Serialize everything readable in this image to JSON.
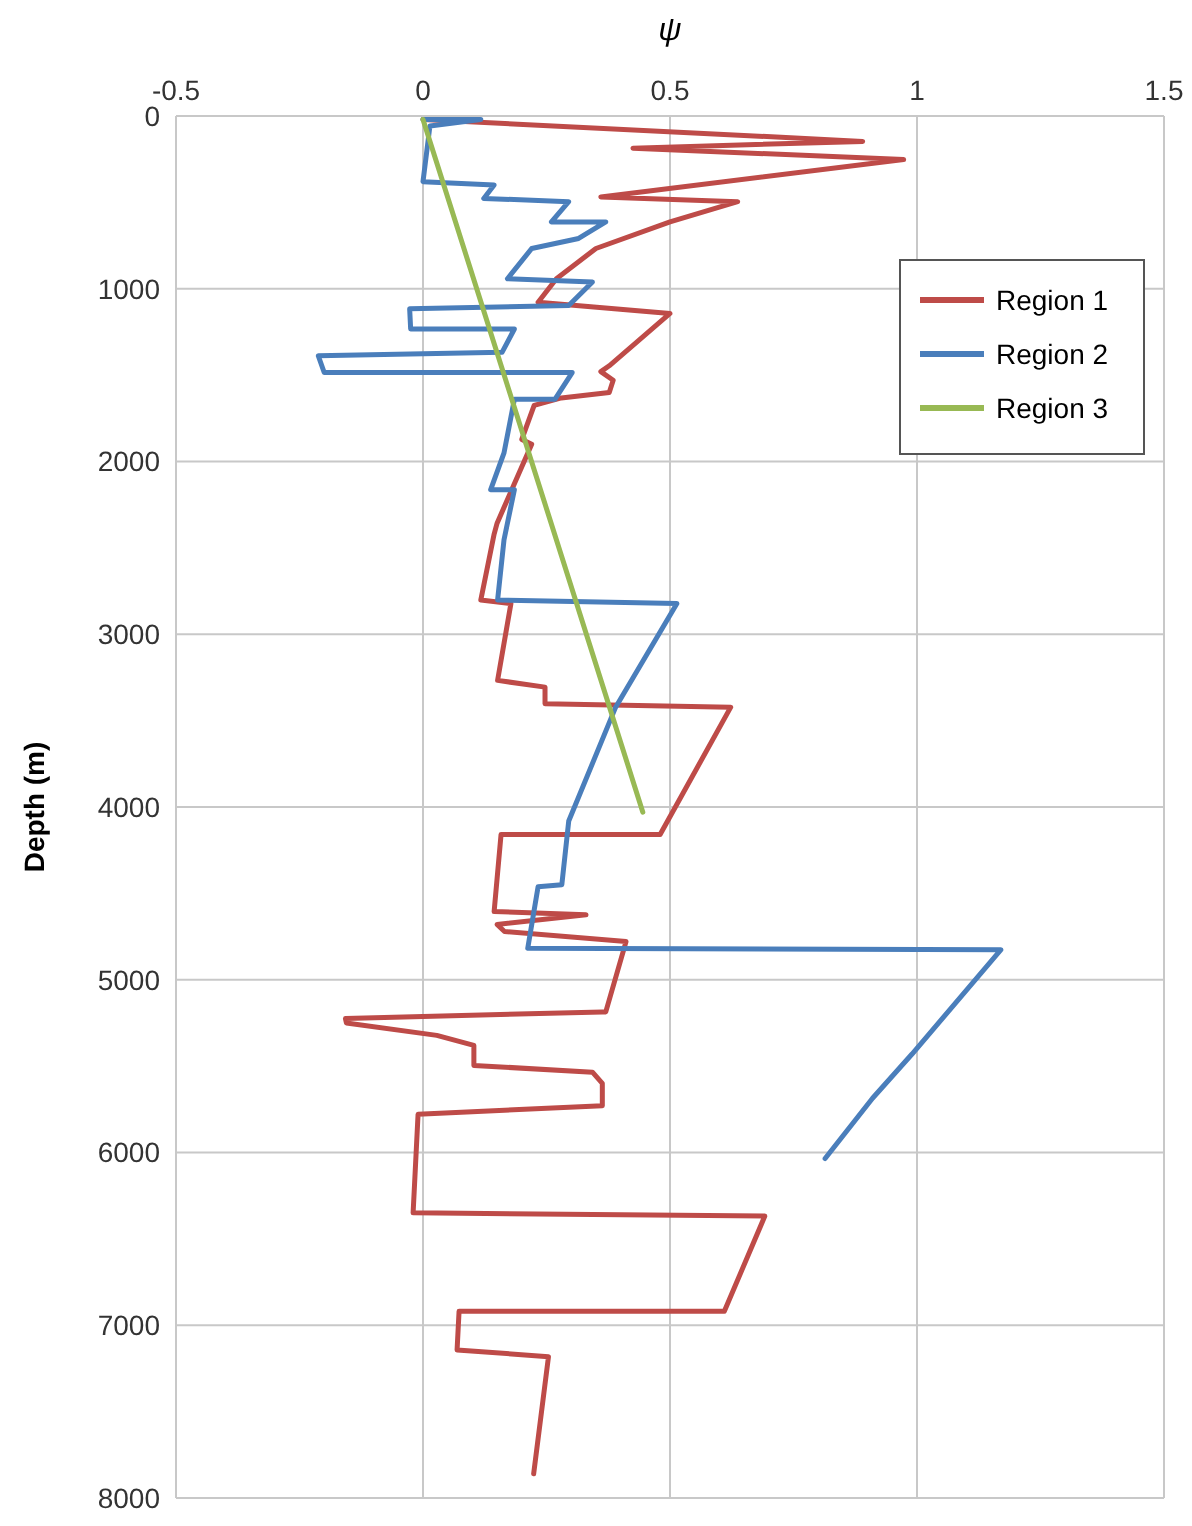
{
  "chart_data": {
    "type": "line",
    "xlabel": "ψ",
    "ylabel": "Depth (m)",
    "xlim": [
      -0.5,
      1.5
    ],
    "xticks": [
      -0.5,
      0,
      0.5,
      1,
      1.5
    ],
    "ylim": [
      8000,
      0
    ],
    "yticks": [
      0,
      1000,
      2000,
      3000,
      4000,
      5000,
      6000,
      7000,
      8000
    ],
    "grid": true,
    "legend": "top right",
    "marker": "none",
    "line_style": "solid",
    "series": [
      {
        "name": "Region 1",
        "color": "#be4b48",
        "x": [
          0,
          0.89,
          0.425,
          0.973,
          0.36,
          0.637,
          0.5,
          0.35,
          0.27,
          0.233,
          0.5,
          0.377,
          0.36,
          0.385,
          0.377,
          0.28,
          0.225,
          0.2,
          0.22,
          0.15,
          0.144,
          0.117,
          0.178,
          0.151,
          0.247,
          0.247,
          0.623,
          0.48,
          0.158,
          0.144,
          0.33,
          0.15,
          0.165,
          0.411,
          0.37,
          0.363,
          -0.157,
          -0.155,
          0.028,
          0.103,
          0.103,
          0.343,
          0.363,
          0.363,
          -0.01,
          -0.02,
          0.692,
          0.61,
          0.073,
          0.069,
          0.254,
          0.224
        ],
        "values": [
          20,
          147,
          186,
          252,
          469,
          496,
          613,
          767,
          942,
          1078,
          1143,
          1446,
          1480,
          1530,
          1601,
          1632,
          1675,
          1872,
          1900,
          2357,
          2420,
          2802,
          2822,
          3267,
          3306,
          3403,
          3422,
          4159,
          4159,
          4605,
          4624,
          4680,
          4721,
          4779,
          5186,
          5186,
          5225,
          5250,
          5322,
          5380,
          5496,
          5535,
          5600,
          5729,
          5779,
          6349,
          6368,
          6919,
          6919,
          7143,
          7182,
          7860
        ]
      },
      {
        "name": "Region 2",
        "color": "#4a7ebb",
        "x": [
          0,
          0.117,
          0.014,
          0,
          0.144,
          0.123,
          0.295,
          0.26,
          0.37,
          0.315,
          0.22,
          0.171,
          0.343,
          0.295,
          -0.027,
          -0.025,
          0.185,
          0.16,
          -0.212,
          -0.2,
          0.302,
          0.267,
          0.185,
          0.164,
          0.137,
          0.185,
          0.164,
          0.151,
          0.514,
          0.39,
          0.295,
          0.281,
          0.233,
          0.212,
          1.17,
          0.99,
          0.91,
          0.814
        ],
        "values": [
          20,
          20,
          58,
          380,
          399,
          477,
          496,
          613,
          613,
          709,
          767,
          942,
          961,
          1097,
          1116,
          1233,
          1233,
          1368,
          1388,
          1485,
          1485,
          1640,
          1640,
          1950,
          2163,
          2163,
          2453,
          2802,
          2822,
          3422,
          4081,
          4450,
          4461,
          4818,
          4826,
          5430,
          5686,
          6035
        ]
      },
      {
        "name": "Region 3",
        "color": "#98b954",
        "x": [
          0,
          0.445
        ],
        "values": [
          20,
          4030
        ]
      }
    ]
  }
}
